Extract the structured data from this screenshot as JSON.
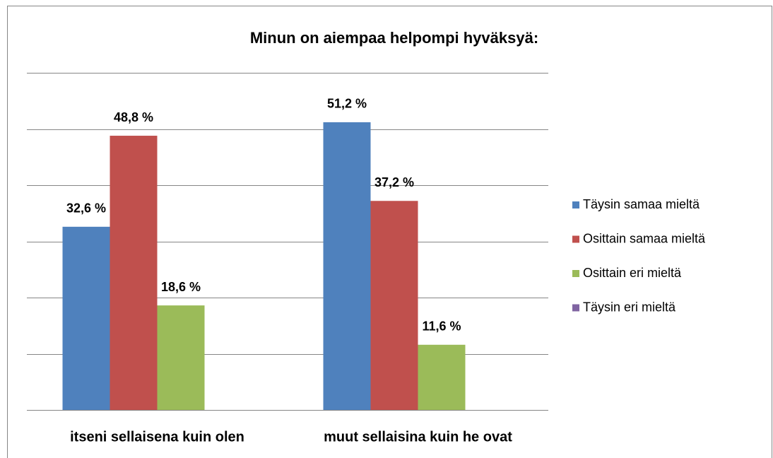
{
  "chart_data": {
    "type": "bar",
    "title": "Minun on aiempaa helpompi hyväksyä:",
    "categories": [
      "itseni sellaisena kuin olen",
      "muut sellaisina kuin he ovat"
    ],
    "series": [
      {
        "name": "Täysin samaa mieltä",
        "color": "#4f81bd",
        "values": [
          32.6,
          51.2
        ],
        "value_labels": [
          "32,6 %",
          "51,2 %"
        ]
      },
      {
        "name": "Osittain samaa mieltä",
        "color": "#c0504d",
        "values": [
          48.8,
          37.2
        ],
        "value_labels": [
          "48,8 %",
          "37,2 %"
        ]
      },
      {
        "name": "Osittain eri mieltä",
        "color": "#9bbb59",
        "values": [
          18.6,
          11.6
        ],
        "value_labels": [
          "18,6 %",
          "11,6 %"
        ]
      },
      {
        "name": "Täysin eri mieltä",
        "color": "#8064a2",
        "values": [
          0,
          0
        ],
        "value_labels": [
          null,
          null
        ]
      }
    ],
    "ylim": [
      0,
      60
    ],
    "yticks": [
      0,
      10,
      20,
      30,
      40,
      50,
      60
    ],
    "grid": true,
    "legend": "right"
  }
}
